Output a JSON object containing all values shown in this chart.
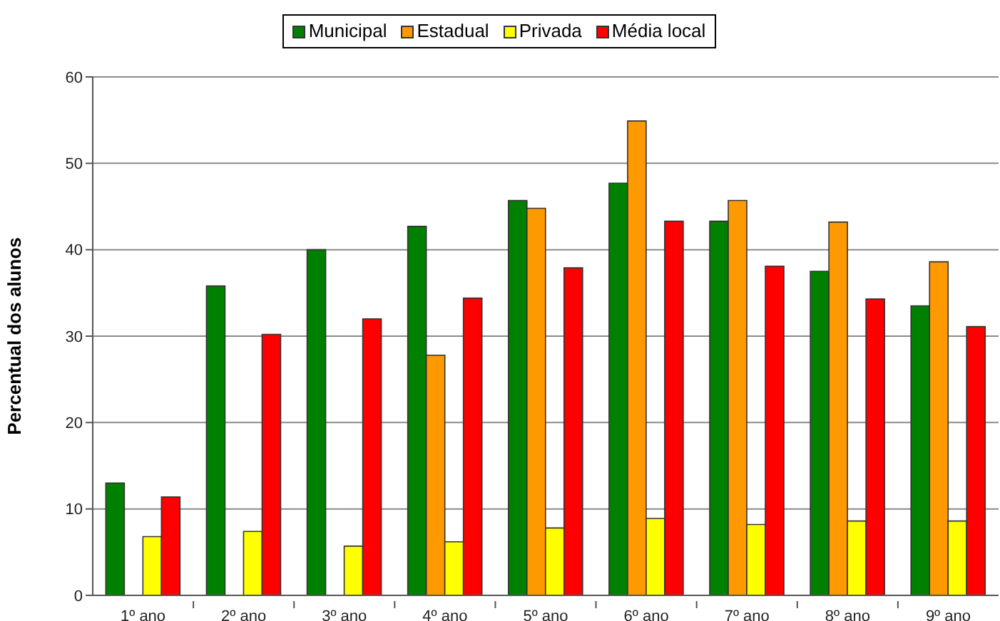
{
  "chart_data": {
    "type": "bar",
    "ylabel": "Percentual dos alunos",
    "categories": [
      "1º ano",
      "2º ano",
      "3º ano",
      "4º ano",
      "5º ano",
      "6º ano",
      "7º ano",
      "8º ano",
      "9º ano"
    ],
    "series": [
      {
        "name": "Municipal",
        "color": "#008000",
        "values": [
          13.0,
          35.8,
          40.0,
          42.7,
          45.7,
          47.7,
          43.3,
          37.5,
          33.5
        ]
      },
      {
        "name": "Estadual",
        "color": "#ff9900",
        "values": [
          null,
          null,
          null,
          27.8,
          44.8,
          54.9,
          45.7,
          43.2,
          38.6
        ]
      },
      {
        "name": "Privada",
        "color": "#ffff00",
        "values": [
          6.8,
          7.4,
          5.7,
          6.2,
          7.8,
          8.9,
          8.2,
          8.6,
          8.6
        ]
      },
      {
        "name": "Média local",
        "color": "#ff0000",
        "values": [
          11.4,
          30.2,
          32.0,
          34.4,
          37.9,
          43.3,
          38.1,
          34.3,
          31.1
        ]
      }
    ],
    "ylim": [
      0,
      60
    ],
    "yticks": [
      0,
      10,
      20,
      30,
      40,
      50,
      60
    ],
    "grid": "y",
    "legend": "top"
  }
}
